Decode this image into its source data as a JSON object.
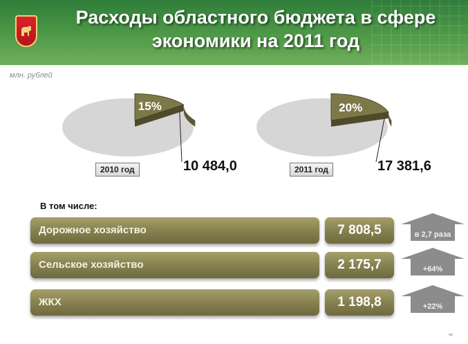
{
  "header": {
    "title": "Расходы областного бюджета в сфере экономики на 2011 год"
  },
  "units": "млн. рублей",
  "chart_data": [
    {
      "type": "pie",
      "year_label": "2010 год",
      "total_label": "10 484,0",
      "total": 10484.0,
      "slices": [
        {
          "value": 15,
          "label": "15%"
        },
        {
          "value": 85,
          "label": ""
        }
      ],
      "colors": [
        "#7d7848",
        "#d6d6d6"
      ]
    },
    {
      "type": "pie",
      "year_label": "2011 год",
      "total_label": "17 381,6",
      "total": 17381.6,
      "slices": [
        {
          "value": 20,
          "label": "20%"
        },
        {
          "value": 80,
          "label": ""
        }
      ],
      "colors": [
        "#7d7848",
        "#d6d6d6"
      ]
    }
  ],
  "breakdown": {
    "heading": "В том числе:",
    "items": [
      {
        "name": "Дорожное хозяйство",
        "value": "7 808,5",
        "change": "в 2,7 раза"
      },
      {
        "name": "Сельское хозяйство",
        "value": "2 175,7",
        "change": "+64%"
      },
      {
        "name": "ЖКХ",
        "value": "1 198,8",
        "change": "+22%"
      }
    ]
  },
  "colors": {
    "header_green": "#3f8a40",
    "olive": "#8a8452",
    "pie_grey": "#d6d6d6",
    "arrow_grey": "#8c8c8c"
  }
}
